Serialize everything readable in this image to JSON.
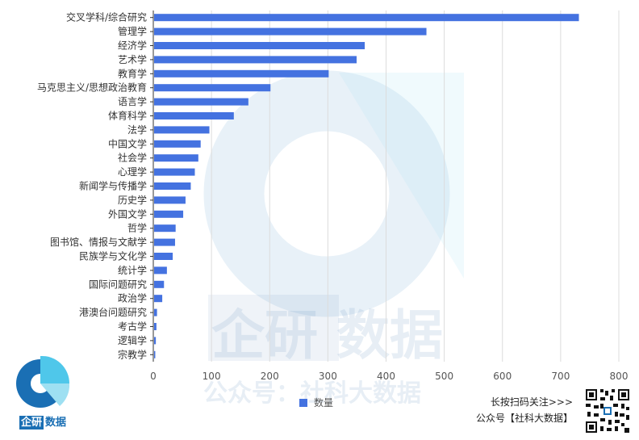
{
  "chart_data": {
    "type": "bar",
    "orientation": "horizontal",
    "categories": [
      "交叉学科/综合研究",
      "管理学",
      "经济学",
      "艺术学",
      "教育学",
      "马克思主义/思想政治教育",
      "语言学",
      "体育科学",
      "法学",
      "中国文学",
      "社会学",
      "心理学",
      "新闻学与传播学",
      "历史学",
      "外国文学",
      "哲学",
      "图书馆、情报与文献学",
      "民族学与文化学",
      "统计学",
      "国际问题研究",
      "政治学",
      "港澳台问题研究",
      "考古学",
      "逻辑学",
      "宗教学"
    ],
    "series": [
      {
        "name": "数量",
        "values": [
          730,
          468,
          362,
          348,
          300,
          200,
          162,
          137,
          95,
          80,
          76,
          70,
          63,
          54,
          50,
          37,
          36,
          32,
          22,
          17,
          14,
          5,
          4,
          3,
          2
        ]
      }
    ],
    "xlim": [
      0,
      800
    ],
    "xticks": [
      0,
      100,
      200,
      300,
      400,
      500,
      600,
      700,
      800
    ],
    "grid": true,
    "legend": "bottom-center",
    "bar_color": "#4472e0"
  },
  "legend_label": "数量",
  "watermark": {
    "main": "企研 数据",
    "sub": "公众号：社科大数据"
  },
  "logo": {
    "part1": "企研",
    "part2": "数据"
  },
  "promo": {
    "line1": "长按扫码关注>>>",
    "line2": "公众号【社科大数据】"
  },
  "icons": {
    "logo": "qiyan-logo-icon",
    "qr": "qr-code-icon"
  }
}
